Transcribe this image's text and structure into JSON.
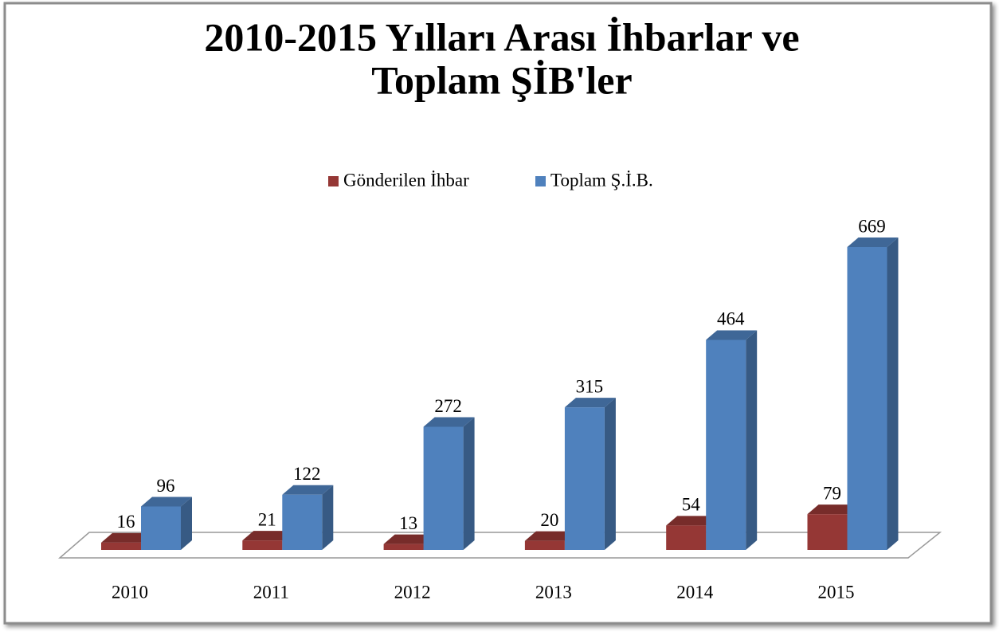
{
  "chart_data": {
    "type": "bar3d",
    "title": "2010-2015 Yılları Arası İhbarlar ve",
    "title_line2": "Toplam ŞİB'ler",
    "categories": [
      "2010",
      "2011",
      "2012",
      "2013",
      "2014",
      "2015"
    ],
    "series": [
      {
        "name": "Gönderilen İhbar",
        "color": "#953735",
        "values": [
          16,
          21,
          13,
          20,
          54,
          79
        ]
      },
      {
        "name": "Toplam Ş.İ.B.",
        "color": "#4f81bd",
        "values": [
          96,
          122,
          272,
          315,
          464,
          669
        ]
      }
    ],
    "legend": "top"
  }
}
